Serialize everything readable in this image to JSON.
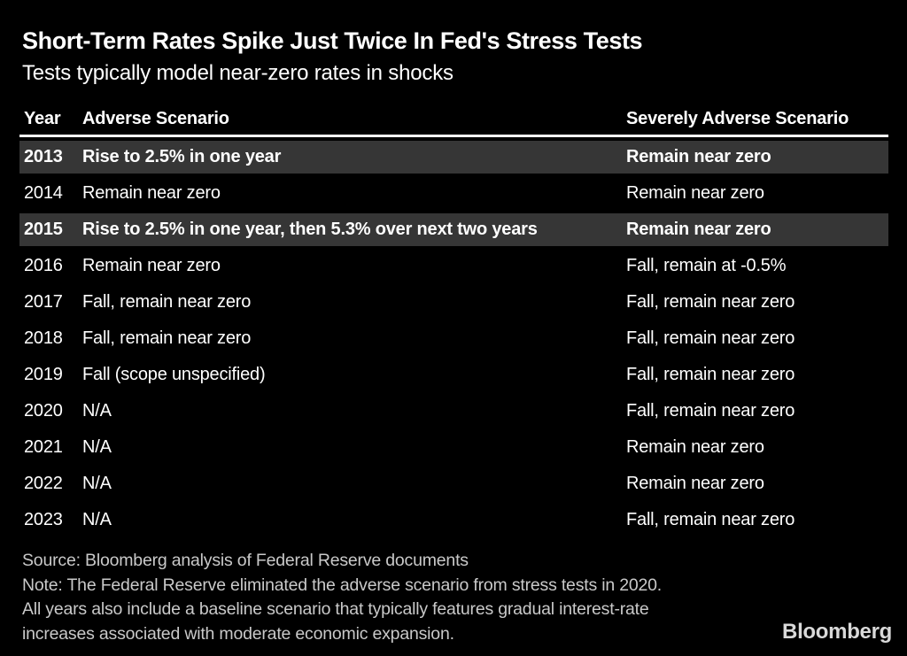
{
  "header": {
    "title": "Short-Term Rates Spike Just Twice In Fed's Stress Tests",
    "subtitle": "Tests typically model near-zero rates in shocks"
  },
  "table": {
    "columns": [
      "Year",
      "Adverse Scenario",
      "Severely Adverse Scenario"
    ],
    "rows": [
      {
        "year": "2013",
        "adverse": "Rise to 2.5% in one year",
        "severe": "Remain near zero",
        "highlight": true
      },
      {
        "year": "2014",
        "adverse": "Remain near zero",
        "severe": "Remain near zero",
        "highlight": false
      },
      {
        "year": "2015",
        "adverse": "Rise to 2.5% in one year, then 5.3% over next two years",
        "severe": "Remain near zero",
        "highlight": true
      },
      {
        "year": "2016",
        "adverse": "Remain near zero",
        "severe": "Fall, remain at -0.5%",
        "highlight": false
      },
      {
        "year": "2017",
        "adverse": "Fall, remain near zero",
        "severe": "Fall, remain near zero",
        "highlight": false
      },
      {
        "year": "2018",
        "adverse": "Fall, remain near zero",
        "severe": "Fall, remain near zero",
        "highlight": false
      },
      {
        "year": "2019",
        "adverse": "Fall (scope unspecified)",
        "severe": "Fall, remain near zero",
        "highlight": false
      },
      {
        "year": "2020",
        "adverse": "N/A",
        "severe": "Fall, remain near zero",
        "highlight": false
      },
      {
        "year": "2021",
        "adverse": "N/A",
        "severe": "Remain near zero",
        "highlight": false
      },
      {
        "year": "2022",
        "adverse": "N/A",
        "severe": "Remain near zero",
        "highlight": false
      },
      {
        "year": "2023",
        "adverse": "N/A",
        "severe": "Fall, remain near zero",
        "highlight": false
      }
    ]
  },
  "footer": {
    "source": "Source: Bloomberg analysis of Federal Reserve documents",
    "note_lines": [
      "Note: The Federal Reserve eliminated the adverse scenario from stress tests in 2020.",
      "All years also include a baseline scenario that typically features gradual interest-rate",
      "increases associated with moderate economic expansion."
    ],
    "brand": "Bloomberg"
  },
  "colors": {
    "background": "#000000",
    "highlight_row": "#363636",
    "body_text": "#ffffff",
    "footer_text": "#c9c9c9",
    "header_divider": "#ffffff",
    "brand_text": "#d9d9d9"
  },
  "chart_data": {
    "type": "table",
    "title": "Short-Term Rates Spike Just Twice In Fed's Stress Tests",
    "subtitle": "Tests typically model near-zero rates in shocks",
    "columns": [
      "Year",
      "Adverse Scenario",
      "Severely Adverse Scenario"
    ],
    "rows": [
      [
        "2013",
        "Rise to 2.5% in one year",
        "Remain near zero"
      ],
      [
        "2014",
        "Remain near zero",
        "Remain near zero"
      ],
      [
        "2015",
        "Rise to 2.5% in one year, then 5.3% over next two years",
        "Remain near zero"
      ],
      [
        "2016",
        "Remain near zero",
        "Fall, remain at -0.5%"
      ],
      [
        "2017",
        "Fall, remain near zero",
        "Fall, remain near zero"
      ],
      [
        "2018",
        "Fall, remain near zero",
        "Fall, remain near zero"
      ],
      [
        "2019",
        "Fall (scope unspecified)",
        "Fall, remain near zero"
      ],
      [
        "2020",
        "N/A",
        "Fall, remain near zero"
      ],
      [
        "2021",
        "N/A",
        "Remain near zero"
      ],
      [
        "2022",
        "N/A",
        "Remain near zero"
      ],
      [
        "2023",
        "N/A",
        "Fall, remain near zero"
      ]
    ],
    "highlighted_years": [
      "2013",
      "2015"
    ],
    "annotations": [
      "Source: Bloomberg analysis of Federal Reserve documents",
      "Note: The Federal Reserve eliminated the adverse scenario from stress tests in 2020. All years also include a baseline scenario that typically features gradual interest-rate increases associated with moderate economic expansion."
    ],
    "layout": {
      "theme": "dark",
      "grid": false,
      "legend": "none"
    }
  }
}
